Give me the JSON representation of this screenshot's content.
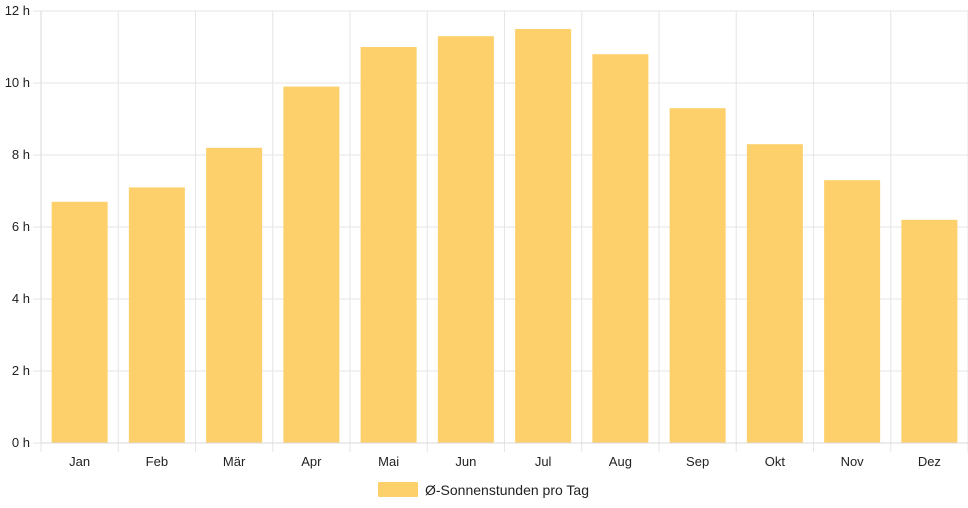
{
  "chart_data": {
    "type": "bar",
    "categories": [
      "Jan",
      "Feb",
      "Mär",
      "Apr",
      "Mai",
      "Jun",
      "Jul",
      "Aug",
      "Sep",
      "Okt",
      "Nov",
      "Dez"
    ],
    "series": [
      {
        "name": "Ø-Sonnenstunden pro Tag",
        "values": [
          6.7,
          7.1,
          8.2,
          9.9,
          11.0,
          11.3,
          11.5,
          10.8,
          9.3,
          8.3,
          7.3,
          6.2
        ],
        "color": "#fed06b"
      }
    ],
    "ylim": [
      0,
      12
    ],
    "yticks": [
      0,
      2,
      4,
      6,
      8,
      10,
      12
    ],
    "y_tick_labels": [
      "0 h",
      "2 h",
      "4 h",
      "6 h",
      "8 h",
      "10 h",
      "12 h"
    ],
    "grid": true,
    "legend_position": "bottom"
  }
}
